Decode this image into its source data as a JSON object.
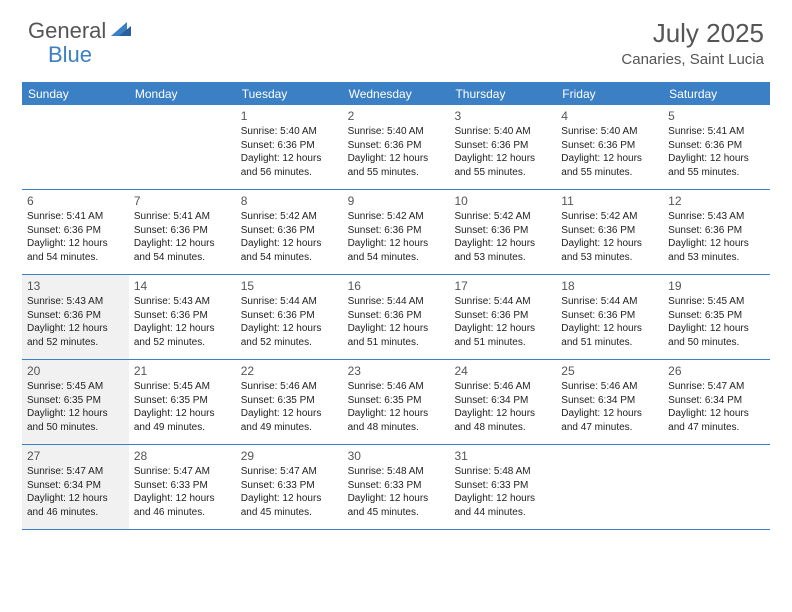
{
  "logo": {
    "part1": "General",
    "part2": "Blue"
  },
  "title": "July 2025",
  "location": "Canaries, Saint Lucia",
  "colors": {
    "header_bg": "#3b7fc4",
    "header_text": "#ffffff",
    "body_text": "#222222",
    "muted_text": "#555555",
    "shaded_bg": "#f1f1f1",
    "page_bg": "#ffffff"
  },
  "weekdays": [
    "Sunday",
    "Monday",
    "Tuesday",
    "Wednesday",
    "Thursday",
    "Friday",
    "Saturday"
  ],
  "weeks": [
    [
      null,
      null,
      {
        "n": "1",
        "r": "Sunrise: 5:40 AM",
        "s": "Sunset: 6:36 PM",
        "d1": "Daylight: 12 hours",
        "d2": "and 56 minutes."
      },
      {
        "n": "2",
        "r": "Sunrise: 5:40 AM",
        "s": "Sunset: 6:36 PM",
        "d1": "Daylight: 12 hours",
        "d2": "and 55 minutes."
      },
      {
        "n": "3",
        "r": "Sunrise: 5:40 AM",
        "s": "Sunset: 6:36 PM",
        "d1": "Daylight: 12 hours",
        "d2": "and 55 minutes."
      },
      {
        "n": "4",
        "r": "Sunrise: 5:40 AM",
        "s": "Sunset: 6:36 PM",
        "d1": "Daylight: 12 hours",
        "d2": "and 55 minutes."
      },
      {
        "n": "5",
        "r": "Sunrise: 5:41 AM",
        "s": "Sunset: 6:36 PM",
        "d1": "Daylight: 12 hours",
        "d2": "and 55 minutes."
      }
    ],
    [
      {
        "n": "6",
        "r": "Sunrise: 5:41 AM",
        "s": "Sunset: 6:36 PM",
        "d1": "Daylight: 12 hours",
        "d2": "and 54 minutes."
      },
      {
        "n": "7",
        "r": "Sunrise: 5:41 AM",
        "s": "Sunset: 6:36 PM",
        "d1": "Daylight: 12 hours",
        "d2": "and 54 minutes."
      },
      {
        "n": "8",
        "r": "Sunrise: 5:42 AM",
        "s": "Sunset: 6:36 PM",
        "d1": "Daylight: 12 hours",
        "d2": "and 54 minutes."
      },
      {
        "n": "9",
        "r": "Sunrise: 5:42 AM",
        "s": "Sunset: 6:36 PM",
        "d1": "Daylight: 12 hours",
        "d2": "and 54 minutes."
      },
      {
        "n": "10",
        "r": "Sunrise: 5:42 AM",
        "s": "Sunset: 6:36 PM",
        "d1": "Daylight: 12 hours",
        "d2": "and 53 minutes."
      },
      {
        "n": "11",
        "r": "Sunrise: 5:42 AM",
        "s": "Sunset: 6:36 PM",
        "d1": "Daylight: 12 hours",
        "d2": "and 53 minutes."
      },
      {
        "n": "12",
        "r": "Sunrise: 5:43 AM",
        "s": "Sunset: 6:36 PM",
        "d1": "Daylight: 12 hours",
        "d2": "and 53 minutes."
      }
    ],
    [
      {
        "n": "13",
        "r": "Sunrise: 5:43 AM",
        "s": "Sunset: 6:36 PM",
        "d1": "Daylight: 12 hours",
        "d2": "and 52 minutes.",
        "sh": true
      },
      {
        "n": "14",
        "r": "Sunrise: 5:43 AM",
        "s": "Sunset: 6:36 PM",
        "d1": "Daylight: 12 hours",
        "d2": "and 52 minutes."
      },
      {
        "n": "15",
        "r": "Sunrise: 5:44 AM",
        "s": "Sunset: 6:36 PM",
        "d1": "Daylight: 12 hours",
        "d2": "and 52 minutes."
      },
      {
        "n": "16",
        "r": "Sunrise: 5:44 AM",
        "s": "Sunset: 6:36 PM",
        "d1": "Daylight: 12 hours",
        "d2": "and 51 minutes."
      },
      {
        "n": "17",
        "r": "Sunrise: 5:44 AM",
        "s": "Sunset: 6:36 PM",
        "d1": "Daylight: 12 hours",
        "d2": "and 51 minutes."
      },
      {
        "n": "18",
        "r": "Sunrise: 5:44 AM",
        "s": "Sunset: 6:36 PM",
        "d1": "Daylight: 12 hours",
        "d2": "and 51 minutes."
      },
      {
        "n": "19",
        "r": "Sunrise: 5:45 AM",
        "s": "Sunset: 6:35 PM",
        "d1": "Daylight: 12 hours",
        "d2": "and 50 minutes."
      }
    ],
    [
      {
        "n": "20",
        "r": "Sunrise: 5:45 AM",
        "s": "Sunset: 6:35 PM",
        "d1": "Daylight: 12 hours",
        "d2": "and 50 minutes.",
        "sh": true
      },
      {
        "n": "21",
        "r": "Sunrise: 5:45 AM",
        "s": "Sunset: 6:35 PM",
        "d1": "Daylight: 12 hours",
        "d2": "and 49 minutes."
      },
      {
        "n": "22",
        "r": "Sunrise: 5:46 AM",
        "s": "Sunset: 6:35 PM",
        "d1": "Daylight: 12 hours",
        "d2": "and 49 minutes."
      },
      {
        "n": "23",
        "r": "Sunrise: 5:46 AM",
        "s": "Sunset: 6:35 PM",
        "d1": "Daylight: 12 hours",
        "d2": "and 48 minutes."
      },
      {
        "n": "24",
        "r": "Sunrise: 5:46 AM",
        "s": "Sunset: 6:34 PM",
        "d1": "Daylight: 12 hours",
        "d2": "and 48 minutes."
      },
      {
        "n": "25",
        "r": "Sunrise: 5:46 AM",
        "s": "Sunset: 6:34 PM",
        "d1": "Daylight: 12 hours",
        "d2": "and 47 minutes."
      },
      {
        "n": "26",
        "r": "Sunrise: 5:47 AM",
        "s": "Sunset: 6:34 PM",
        "d1": "Daylight: 12 hours",
        "d2": "and 47 minutes."
      }
    ],
    [
      {
        "n": "27",
        "r": "Sunrise: 5:47 AM",
        "s": "Sunset: 6:34 PM",
        "d1": "Daylight: 12 hours",
        "d2": "and 46 minutes.",
        "sh": true
      },
      {
        "n": "28",
        "r": "Sunrise: 5:47 AM",
        "s": "Sunset: 6:33 PM",
        "d1": "Daylight: 12 hours",
        "d2": "and 46 minutes."
      },
      {
        "n": "29",
        "r": "Sunrise: 5:47 AM",
        "s": "Sunset: 6:33 PM",
        "d1": "Daylight: 12 hours",
        "d2": "and 45 minutes."
      },
      {
        "n": "30",
        "r": "Sunrise: 5:48 AM",
        "s": "Sunset: 6:33 PM",
        "d1": "Daylight: 12 hours",
        "d2": "and 45 minutes."
      },
      {
        "n": "31",
        "r": "Sunrise: 5:48 AM",
        "s": "Sunset: 6:33 PM",
        "d1": "Daylight: 12 hours",
        "d2": "and 44 minutes."
      },
      null,
      null
    ]
  ]
}
